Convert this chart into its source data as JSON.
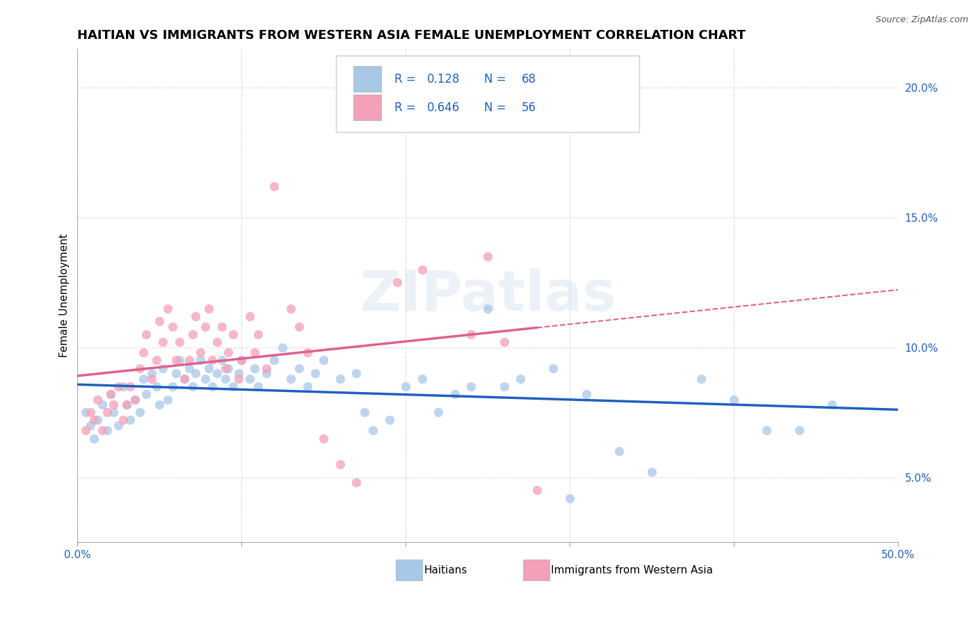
{
  "title": "HAITIAN VS IMMIGRANTS FROM WESTERN ASIA FEMALE UNEMPLOYMENT CORRELATION CHART",
  "source": "Source: ZipAtlas.com",
  "ylabel": "Female Unemployment",
  "xlim": [
    0.0,
    0.5
  ],
  "ylim": [
    0.025,
    0.215
  ],
  "xticks": [
    0.0,
    0.1,
    0.2,
    0.3,
    0.4,
    0.5
  ],
  "xticklabels": [
    "0.0%",
    "",
    "",
    "",
    "",
    "50.0%"
  ],
  "yticks": [
    0.05,
    0.1,
    0.15,
    0.2
  ],
  "yticklabels": [
    "5.0%",
    "10.0%",
    "15.0%",
    "20.0%"
  ],
  "haitian_color": "#a8c8e8",
  "western_asia_color": "#f4a0b8",
  "haitian_line_color": "#2060c0",
  "western_asia_line_color": "#e06090",
  "legend_label1": "Haitians",
  "legend_label2": "Immigrants from Western Asia",
  "watermark": "ZIPatlas",
  "title_fontsize": 13,
  "axis_label_fontsize": 11,
  "tick_fontsize": 11,
  "r_n_color": "#2060c0",
  "background_color": "#ffffff",
  "grid_color": "#cccccc",
  "haitian_scatter": [
    [
      0.005,
      0.075
    ],
    [
      0.008,
      0.07
    ],
    [
      0.01,
      0.065
    ],
    [
      0.012,
      0.072
    ],
    [
      0.015,
      0.078
    ],
    [
      0.018,
      0.068
    ],
    [
      0.02,
      0.082
    ],
    [
      0.022,
      0.075
    ],
    [
      0.025,
      0.07
    ],
    [
      0.028,
      0.085
    ],
    [
      0.03,
      0.078
    ],
    [
      0.032,
      0.072
    ],
    [
      0.035,
      0.08
    ],
    [
      0.038,
      0.075
    ],
    [
      0.04,
      0.088
    ],
    [
      0.042,
      0.082
    ],
    [
      0.045,
      0.09
    ],
    [
      0.048,
      0.085
    ],
    [
      0.05,
      0.078
    ],
    [
      0.052,
      0.092
    ],
    [
      0.055,
      0.08
    ],
    [
      0.058,
      0.085
    ],
    [
      0.06,
      0.09
    ],
    [
      0.062,
      0.095
    ],
    [
      0.065,
      0.088
    ],
    [
      0.068,
      0.092
    ],
    [
      0.07,
      0.085
    ],
    [
      0.072,
      0.09
    ],
    [
      0.075,
      0.095
    ],
    [
      0.078,
      0.088
    ],
    [
      0.08,
      0.092
    ],
    [
      0.082,
      0.085
    ],
    [
      0.085,
      0.09
    ],
    [
      0.088,
      0.095
    ],
    [
      0.09,
      0.088
    ],
    [
      0.092,
      0.092
    ],
    [
      0.095,
      0.085
    ],
    [
      0.098,
      0.09
    ],
    [
      0.1,
      0.095
    ],
    [
      0.105,
      0.088
    ],
    [
      0.108,
      0.092
    ],
    [
      0.11,
      0.085
    ],
    [
      0.115,
      0.09
    ],
    [
      0.12,
      0.095
    ],
    [
      0.125,
      0.1
    ],
    [
      0.13,
      0.088
    ],
    [
      0.135,
      0.092
    ],
    [
      0.14,
      0.085
    ],
    [
      0.145,
      0.09
    ],
    [
      0.15,
      0.095
    ],
    [
      0.16,
      0.088
    ],
    [
      0.17,
      0.09
    ],
    [
      0.175,
      0.075
    ],
    [
      0.18,
      0.068
    ],
    [
      0.19,
      0.072
    ],
    [
      0.2,
      0.085
    ],
    [
      0.21,
      0.088
    ],
    [
      0.22,
      0.075
    ],
    [
      0.23,
      0.082
    ],
    [
      0.24,
      0.085
    ],
    [
      0.25,
      0.115
    ],
    [
      0.26,
      0.085
    ],
    [
      0.27,
      0.088
    ],
    [
      0.29,
      0.092
    ],
    [
      0.3,
      0.042
    ],
    [
      0.31,
      0.082
    ],
    [
      0.33,
      0.06
    ],
    [
      0.35,
      0.052
    ],
    [
      0.38,
      0.088
    ],
    [
      0.4,
      0.08
    ],
    [
      0.42,
      0.068
    ],
    [
      0.44,
      0.068
    ],
    [
      0.46,
      0.078
    ]
  ],
  "western_asia_scatter": [
    [
      0.005,
      0.068
    ],
    [
      0.008,
      0.075
    ],
    [
      0.01,
      0.072
    ],
    [
      0.012,
      0.08
    ],
    [
      0.015,
      0.068
    ],
    [
      0.018,
      0.075
    ],
    [
      0.02,
      0.082
    ],
    [
      0.022,
      0.078
    ],
    [
      0.025,
      0.085
    ],
    [
      0.028,
      0.072
    ],
    [
      0.03,
      0.078
    ],
    [
      0.032,
      0.085
    ],
    [
      0.035,
      0.08
    ],
    [
      0.038,
      0.092
    ],
    [
      0.04,
      0.098
    ],
    [
      0.042,
      0.105
    ],
    [
      0.045,
      0.088
    ],
    [
      0.048,
      0.095
    ],
    [
      0.05,
      0.11
    ],
    [
      0.052,
      0.102
    ],
    [
      0.055,
      0.115
    ],
    [
      0.058,
      0.108
    ],
    [
      0.06,
      0.095
    ],
    [
      0.062,
      0.102
    ],
    [
      0.065,
      0.088
    ],
    [
      0.068,
      0.095
    ],
    [
      0.07,
      0.105
    ],
    [
      0.072,
      0.112
    ],
    [
      0.075,
      0.098
    ],
    [
      0.078,
      0.108
    ],
    [
      0.08,
      0.115
    ],
    [
      0.082,
      0.095
    ],
    [
      0.085,
      0.102
    ],
    [
      0.088,
      0.108
    ],
    [
      0.09,
      0.092
    ],
    [
      0.092,
      0.098
    ],
    [
      0.095,
      0.105
    ],
    [
      0.098,
      0.088
    ],
    [
      0.1,
      0.095
    ],
    [
      0.105,
      0.112
    ],
    [
      0.108,
      0.098
    ],
    [
      0.11,
      0.105
    ],
    [
      0.115,
      0.092
    ],
    [
      0.12,
      0.162
    ],
    [
      0.13,
      0.115
    ],
    [
      0.135,
      0.108
    ],
    [
      0.14,
      0.098
    ],
    [
      0.15,
      0.065
    ],
    [
      0.16,
      0.055
    ],
    [
      0.17,
      0.048
    ],
    [
      0.195,
      0.125
    ],
    [
      0.21,
      0.13
    ],
    [
      0.24,
      0.105
    ],
    [
      0.25,
      0.135
    ],
    [
      0.26,
      0.102
    ],
    [
      0.28,
      0.045
    ]
  ]
}
